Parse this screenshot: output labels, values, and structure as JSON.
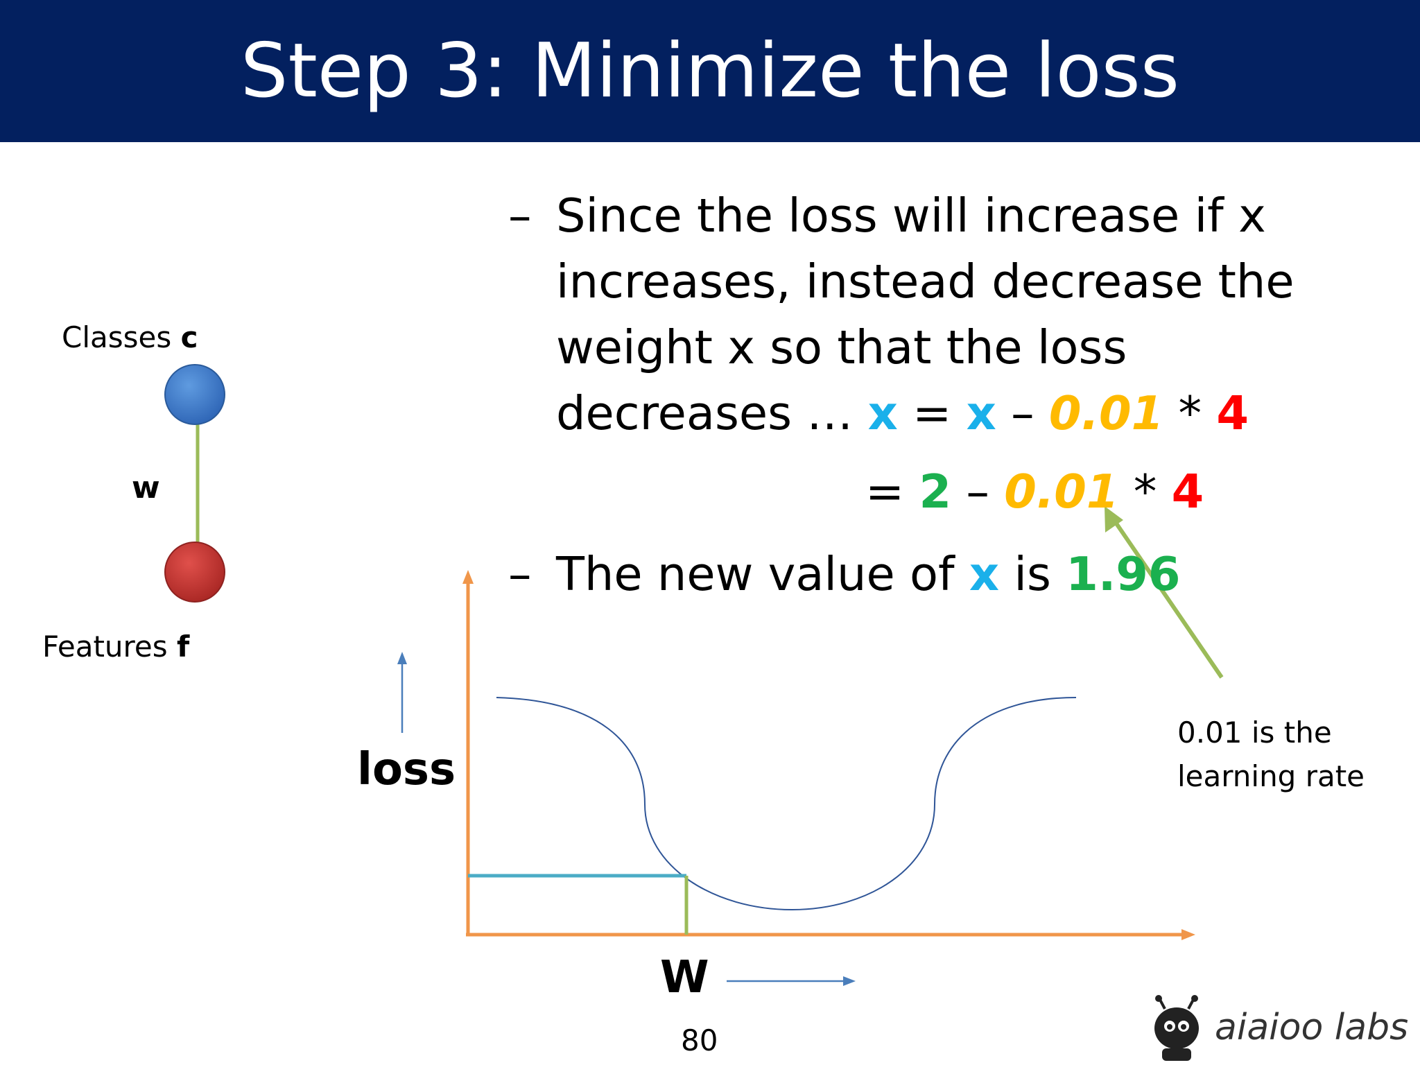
{
  "title": "Step 3: Minimize the loss",
  "bullet1": {
    "line1": "Since the loss will increase if x",
    "line2": "increases, instead decrease the",
    "line3": "weight x so that the loss",
    "line4_prefix": "decreases … ",
    "eq1": {
      "var_left": "x",
      "eq": "=",
      "var_right": "x",
      "minus": "–",
      "rate": "0.01",
      "times": "*",
      "gradient": "4"
    },
    "eq2": {
      "eq": "=",
      "value": "2",
      "minus": "–",
      "rate": "0.01",
      "times": "*",
      "gradient": "4"
    }
  },
  "bullet2": {
    "prefix": "The new value of ",
    "var": "x",
    "middle": " is ",
    "value": "1.96"
  },
  "dash": "–",
  "network": {
    "classes_label": "Classes",
    "classes_symbol": "c",
    "weight_label": "w",
    "features_label": "Features",
    "features_symbol": "f"
  },
  "plot": {
    "y_label": "loss",
    "x_label": "W"
  },
  "annotation": {
    "line1": "0.01 is the",
    "line2": "learning rate"
  },
  "page_number": "80",
  "logo_text": "aiaioo labs",
  "colors": {
    "title_bar": "#03205f",
    "x_var": "#1ab0ea",
    "rate": "#ffba00",
    "gradient": "#ff0000",
    "value": "#1bb04f",
    "axes": "#f0964a",
    "curve": "#2f5597",
    "marker_h": "#4bacc6",
    "marker_v": "#9bbb59",
    "arrow": "#9bbb59",
    "node_top": "#3a76c4",
    "node_bottom": "#c0302e",
    "edge": "#9bbb59"
  }
}
